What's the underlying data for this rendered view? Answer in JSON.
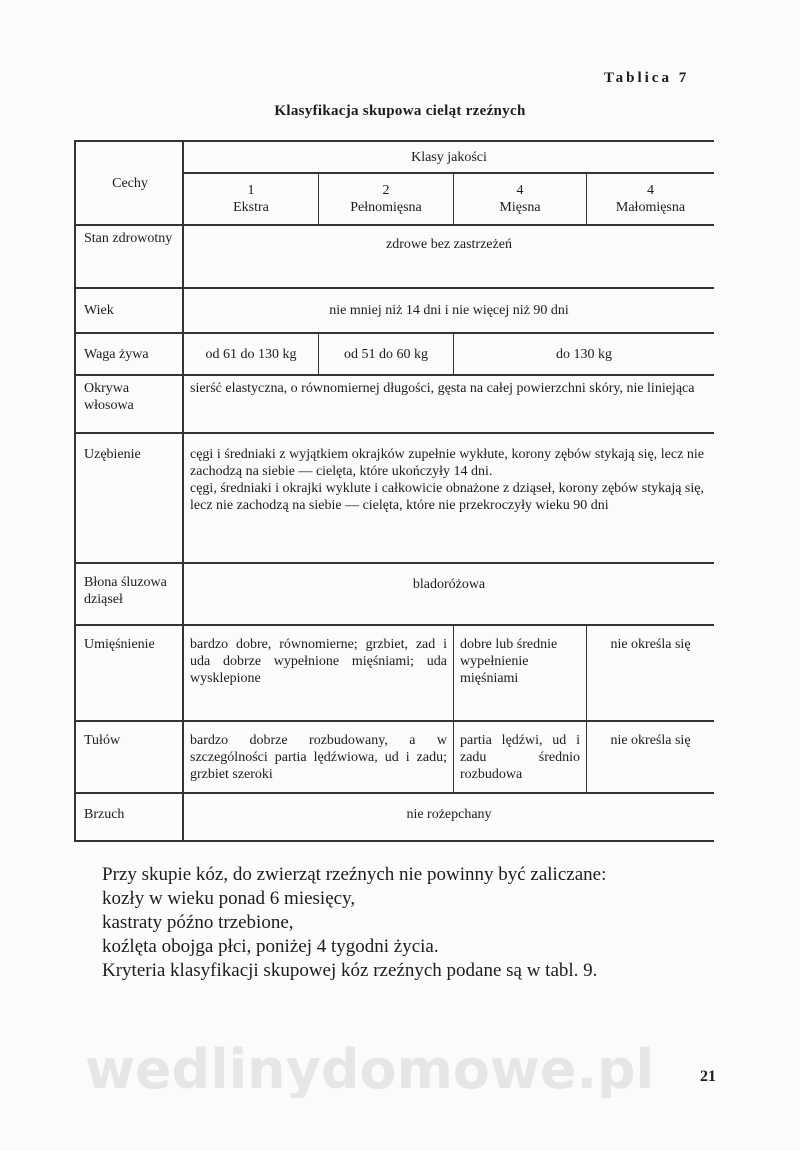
{
  "header": {
    "table_number": "Tablica 7",
    "title": "Klasyfikacja skupowa cieląt rzeźnych"
  },
  "table": {
    "col_features": "Cechy",
    "group_header": "Klasy jakości",
    "classes": [
      {
        "num": "1",
        "name": "Ekstra"
      },
      {
        "num": "2",
        "name": "Pełnomięsna"
      },
      {
        "num": "4",
        "name": "Mięsna"
      },
      {
        "num": "4",
        "name": "Małomięsna"
      }
    ],
    "rows": {
      "stan": {
        "label": "Stan zdrowotny",
        "value": "zdrowe bez zastrzeżeń"
      },
      "wiek": {
        "label": "Wiek",
        "value": "nie mniej niż 14 dni i nie więcej niż 90 dni"
      },
      "waga": {
        "label": "Waga żywa",
        "c1": "od 61 do 130 kg",
        "c2": "od 51 do 60 kg",
        "c34": "do 130 kg"
      },
      "okrywa": {
        "label": "Okrywa włosowa",
        "value": "sierść elastyczna, o równomiernej długości, gęsta na całej powierzchni skóry, nie liniejąca"
      },
      "uzebienie": {
        "label": "Uzębienie",
        "value1": "cęgi i średniaki z wyjątkiem okrajków zupełnie wykłute, korony zębów stykają się, lecz nie zachodzą na siebie — cielęta, które ukończyły 14 dni.",
        "value2": "cęgi, średniaki i okrajki wyklute i całkowicie obnażone z dziąseł, korony zębów stykają się, lecz nie zachodzą na siebie — cielęta, które nie przekroczyły wieku 90 dni"
      },
      "blona": {
        "label": "Błona śluzowa dziąseł",
        "value": "bladoróżowa"
      },
      "umiesnienie": {
        "label": "Umięśnienie",
        "c12": "bardzo dobre, równomierne; grzbiet, zad i uda dobrze wypełnione mięśniami; uda wysklepione",
        "c3": "dobre lub średnie wypełnienie mięśniami",
        "c4": "nie określa się"
      },
      "tulow": {
        "label": "Tułów",
        "c12": "bardzo dobrze rozbudowany, a w szczególności partia lędźwiowa, ud i zadu; grzbiet szeroki",
        "c3": "partia lędźwi, ud i zadu średnio rozbudowa",
        "c4": "nie określa się"
      },
      "brzuch": {
        "label": "Brzuch",
        "value": "nie rożepchany"
      }
    }
  },
  "body": {
    "p1": "Przy skupie kóz, do zwierząt rzeźnych nie powinny być zaliczane:",
    "items": [
      "kozły w wieku ponad 6 miesięcy,",
      "kastraty późno trzebione,",
      "koźlęta obojga płci, poniżej 4 tygodni życia."
    ],
    "p2": "Kryteria klasyfikacji skupowej kóz rzeźnych podane są w tabl. 9."
  },
  "watermark": "wedlinydomowe.pl",
  "page_number": "21"
}
